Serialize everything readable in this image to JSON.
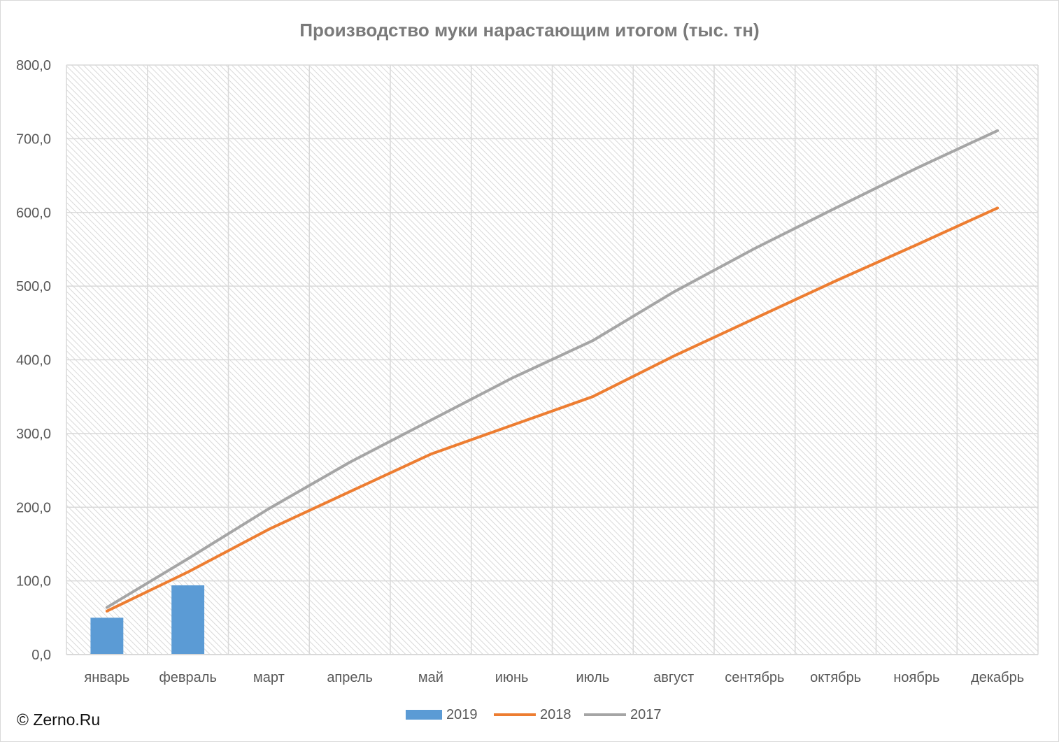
{
  "copyright": "© Zerno.Ru",
  "colors": {
    "s2019": "#5b9bd5",
    "s2018": "#ed7d31",
    "s2017": "#a5a5a5",
    "grid": "#d9d9d9",
    "text": "#595959"
  },
  "chart_data": {
    "type": "bar+line",
    "title": "Производство муки нарастающим итогом (тыс. тн)",
    "xlabel": "",
    "ylabel": "",
    "ylim": [
      0,
      800
    ],
    "yticks": [
      "0,0",
      "100,0",
      "200,0",
      "300,0",
      "400,0",
      "500,0",
      "600,0",
      "700,0",
      "800,0"
    ],
    "categories": [
      "январь",
      "февраль",
      "март",
      "апрель",
      "май",
      "июнь",
      "июль",
      "август",
      "сентябрь",
      "октябрь",
      "ноябрь",
      "декабрь"
    ],
    "grid": true,
    "legend_position": "bottom",
    "series": [
      {
        "name": "2019",
        "type": "bar",
        "values": [
          50,
          94,
          null,
          null,
          null,
          null,
          null,
          null,
          null,
          null,
          null,
          null
        ]
      },
      {
        "name": "2018",
        "type": "line",
        "values": [
          59,
          112,
          170,
          221,
          272,
          311,
          350,
          405,
          456,
          507,
          556,
          606
        ]
      },
      {
        "name": "2017",
        "type": "line",
        "values": [
          64,
          130,
          198,
          261,
          318,
          375,
          426,
          492,
          551,
          606,
          660,
          711
        ]
      }
    ]
  }
}
